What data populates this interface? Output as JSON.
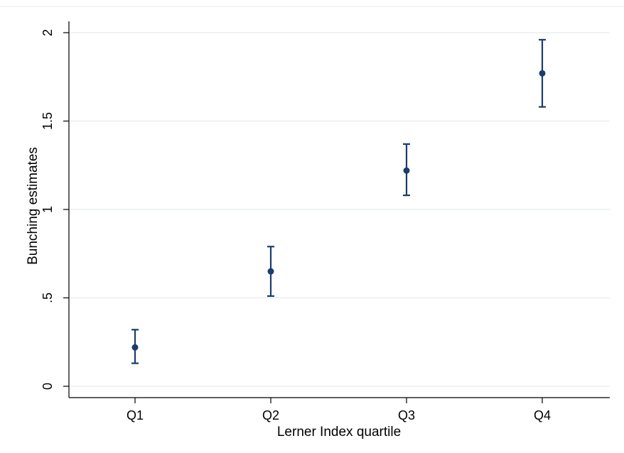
{
  "chart_data": {
    "type": "scatter",
    "title": "",
    "xlabel": "Lerner Index quartile",
    "ylabel": "Bunching estimates",
    "categories": [
      "Q1",
      "Q2",
      "Q3",
      "Q4"
    ],
    "y_ticks": [
      "0",
      ".5",
      "1",
      "1.5",
      "2"
    ],
    "y_tick_values": [
      0,
      0.5,
      1,
      1.5,
      2
    ],
    "ylim": [
      0,
      2
    ],
    "grid": true,
    "series": [
      {
        "values": [
          0.22,
          0.65,
          1.22,
          1.77
        ],
        "ci_lower": [
          0.13,
          0.51,
          1.08,
          1.58
        ],
        "ci_upper": [
          0.32,
          0.79,
          1.37,
          1.96
        ]
      }
    ],
    "colors": {
      "marker": "#1a3d6b",
      "grid": "#e4ecef",
      "axis": "#000000",
      "frame_top": "#e8eef1"
    }
  }
}
